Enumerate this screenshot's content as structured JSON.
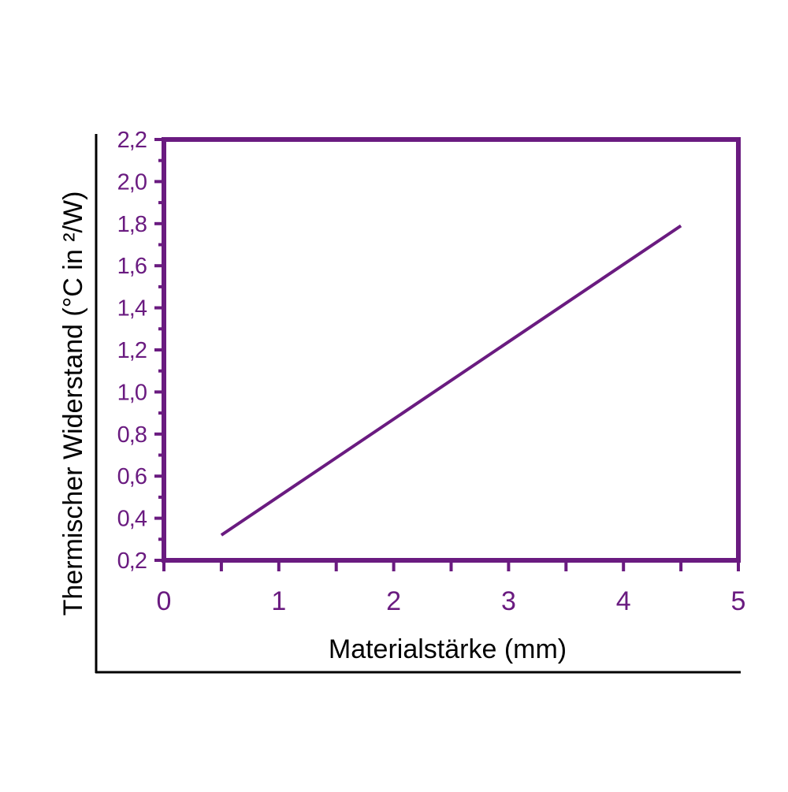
{
  "chart_data": {
    "type": "line",
    "title": "",
    "xlabel": "Materialstärke (mm)",
    "ylabel": "Thermischer Widerstand (°C in ²/W)",
    "xlim": [
      0,
      5
    ],
    "ylim": [
      0.2,
      2.2
    ],
    "x_ticks": [
      {
        "value": 0,
        "label": "0"
      },
      {
        "value": 1,
        "label": "1"
      },
      {
        "value": 2,
        "label": "2"
      },
      {
        "value": 3,
        "label": "3"
      },
      {
        "value": 4,
        "label": "4"
      },
      {
        "value": 5,
        "label": "5"
      }
    ],
    "y_ticks": [
      {
        "value": 0.2,
        "label": "0,2"
      },
      {
        "value": 0.4,
        "label": "0,4"
      },
      {
        "value": 0.6,
        "label": "0,6"
      },
      {
        "value": 0.8,
        "label": "0,8"
      },
      {
        "value": 1.0,
        "label": "1,0"
      },
      {
        "value": 1.2,
        "label": "1,2"
      },
      {
        "value": 1.4,
        "label": "1,4"
      },
      {
        "value": 1.6,
        "label": "1,6"
      },
      {
        "value": 1.8,
        "label": "1,8"
      },
      {
        "value": 2.0,
        "label": "2,0"
      },
      {
        "value": 2.2,
        "label": "2,2"
      }
    ],
    "x_minor_step": 0.5,
    "y_minor_step": 0.1,
    "grid": false,
    "series": [
      {
        "x": [
          0.5,
          4.5
        ],
        "y": [
          0.32,
          1.79
        ]
      }
    ],
    "colors": {
      "accent": "#6a1b80",
      "frame": "#000000",
      "text": "#000000"
    }
  }
}
